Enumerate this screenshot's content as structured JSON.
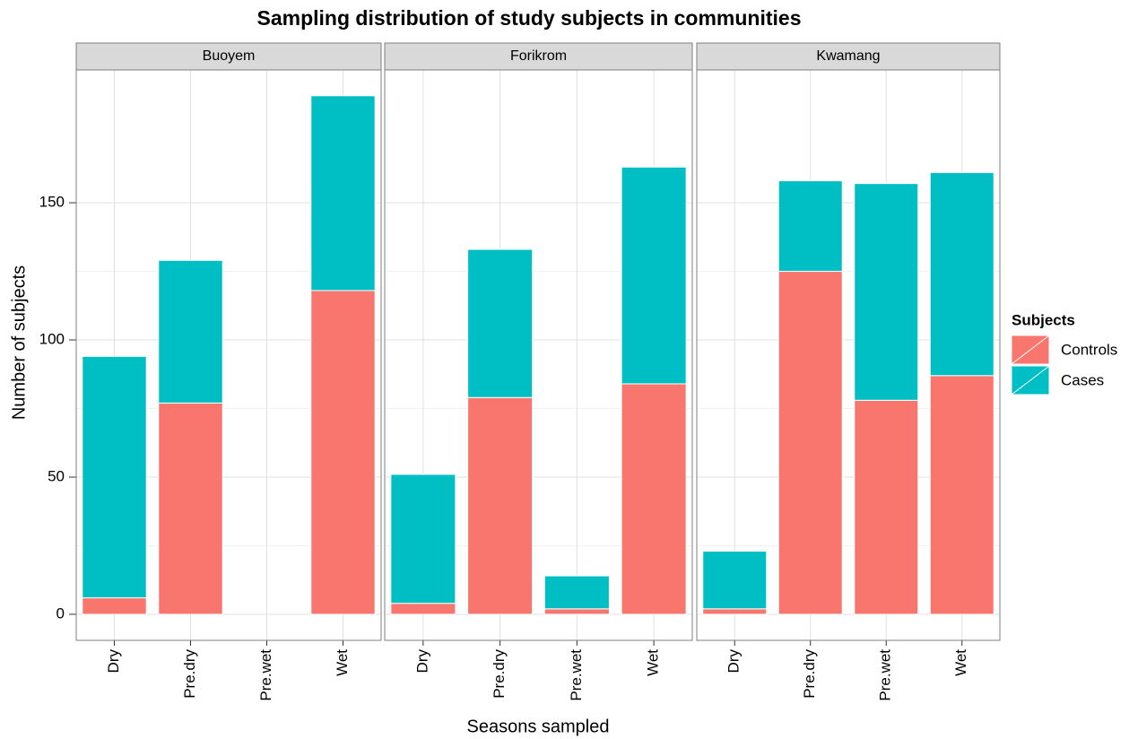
{
  "chart_data": {
    "type": "bar",
    "stacked": true,
    "title": "Sampling distribution of study subjects in communities",
    "x_label": "Seasons sampled",
    "y_label": "Number of subjects",
    "legend_title": "Subjects",
    "legend_position": "right",
    "ylim": [
      -9.5,
      198.4
    ],
    "yticks": [
      0,
      50,
      100,
      150
    ],
    "grid": true,
    "series": [
      {
        "name": "Controls",
        "color": "#f8766d"
      },
      {
        "name": "Cases",
        "color": "#00bfc4"
      }
    ],
    "facets": [
      {
        "title": "Buoyem",
        "categories": [
          "Dry",
          "Pre.dry",
          "Pre.wet",
          "Wet"
        ],
        "series": [
          {
            "values": [
              6,
              77,
              null,
              118
            ]
          },
          {
            "values": [
              88,
              52,
              null,
              71
            ]
          }
        ]
      },
      {
        "title": "Forikrom",
        "categories": [
          "Dry",
          "Pre.dry",
          "Pre.wet",
          "Wet"
        ],
        "series": [
          {
            "values": [
              4,
              79,
              2,
              84
            ]
          },
          {
            "values": [
              47,
              54,
              12,
              79
            ]
          }
        ]
      },
      {
        "title": "Kwamang",
        "categories": [
          "Dry",
          "Pre.dry",
          "Pre.wet",
          "Wet"
        ],
        "series": [
          {
            "values": [
              2,
              125,
              78,
              87
            ]
          },
          {
            "values": [
              21,
              33,
              79,
              74
            ]
          }
        ]
      }
    ]
  }
}
